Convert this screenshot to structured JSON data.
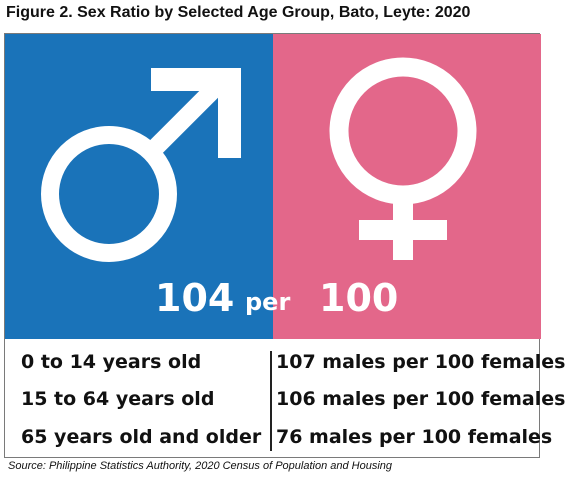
{
  "title": "Figure 2. Sex Ratio by Selected Age Group, Bato, Leyte: 2020",
  "ratio": {
    "males": "104",
    "connector": "per",
    "females": "100"
  },
  "rows": [
    {
      "age_group": "0 to 14 years old",
      "ratio_text": "107 males per 100 females"
    },
    {
      "age_group": "15 to 64 years old",
      "ratio_text": "106 males per 100 females"
    },
    {
      "age_group": "65 years old and older",
      "ratio_text": "76 males per 100 females"
    }
  ],
  "source": "Source: Philippine Statistics Authority, 2020 Census of Population and Housing",
  "colors": {
    "male_panel": "#1a73b9",
    "female_panel": "#e3678a",
    "symbol": "#ffffff"
  },
  "icons": {
    "male": "male-symbol-icon",
    "female": "female-symbol-icon"
  }
}
